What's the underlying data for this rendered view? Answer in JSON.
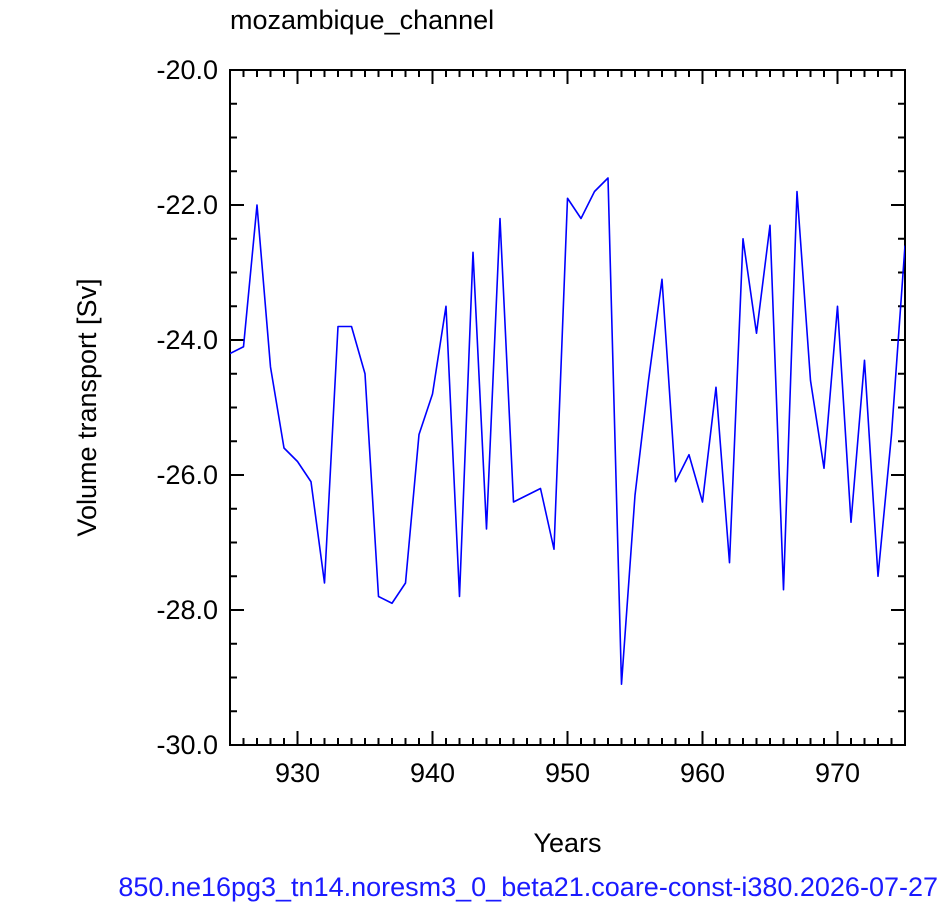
{
  "chart_data": {
    "type": "line",
    "title": "mozambique_channel",
    "xlabel": "Years",
    "ylabel": "Volume transport [Sv]",
    "xlim": [
      925,
      975
    ],
    "ylim": [
      -30.0,
      -20.0
    ],
    "x_ticks": [
      930,
      940,
      950,
      960,
      970
    ],
    "x_tick_labels": [
      "930",
      "940",
      "950",
      "960",
      "970"
    ],
    "y_ticks": [
      -30.0,
      -28.0,
      -26.0,
      -24.0,
      -22.0,
      -20.0
    ],
    "y_tick_labels": [
      "-30.0",
      "-28.0",
      "-26.0",
      "-24.0",
      "-22.0",
      "-20.0"
    ],
    "grid": false,
    "series": [
      {
        "color": "#0000ff",
        "x": [
          925,
          926,
          927,
          928,
          929,
          930,
          931,
          932,
          933,
          934,
          935,
          936,
          937,
          938,
          939,
          940,
          941,
          942,
          943,
          944,
          945,
          946,
          947,
          948,
          949,
          950,
          951,
          952,
          953,
          954,
          955,
          956,
          957,
          958,
          959,
          960,
          961,
          962,
          963,
          964,
          965,
          966,
          967,
          968,
          969,
          970,
          971,
          972,
          973,
          974,
          975
        ],
        "values": [
          -24.2,
          -24.1,
          -22.0,
          -24.4,
          -25.6,
          -25.8,
          -26.1,
          -27.6,
          -23.8,
          -23.8,
          -24.5,
          -27.8,
          -27.9,
          -27.6,
          -25.4,
          -24.8,
          -23.5,
          -27.8,
          -22.7,
          -26.8,
          -22.2,
          -26.4,
          -26.3,
          -26.2,
          -27.1,
          -21.9,
          -22.2,
          -21.8,
          -21.6,
          -29.1,
          -26.3,
          -24.6,
          -23.1,
          -26.1,
          -25.7,
          -26.4,
          -24.7,
          -27.3,
          -22.5,
          -23.9,
          -22.3,
          -27.7,
          -21.8,
          -24.6,
          -25.9,
          -23.5,
          -26.7,
          -24.3,
          -27.5,
          -25.4,
          -22.6
        ]
      }
    ]
  },
  "footer_text": "850.ne16pg3_tn14.noresm3_0_beta21.coare-const-i380.2026-07-27"
}
